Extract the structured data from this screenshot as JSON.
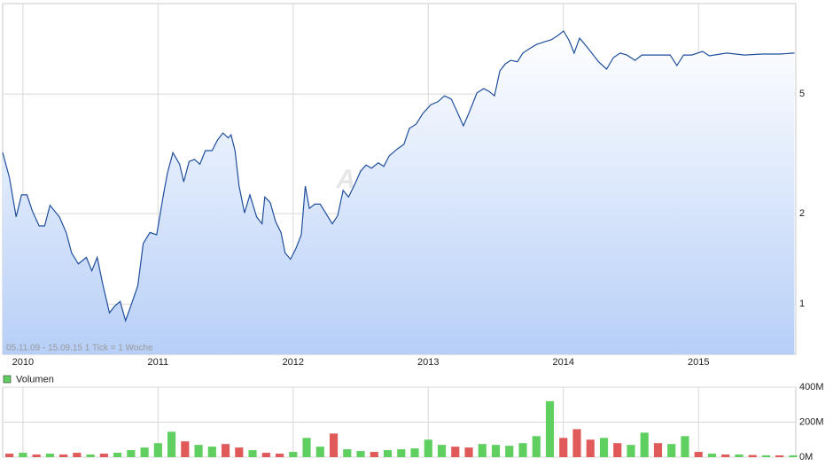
{
  "chart_data": [
    {
      "type": "line",
      "log_scale": true,
      "grid": true,
      "color": "#1f4e9c",
      "note": "05.11.09 - 15.09.15   1 Tick = 1 Woche",
      "watermark": "ARIVA.DE",
      "xlim": [
        2009.85,
        2015.72
      ],
      "xticks": [
        2010,
        2011,
        2012,
        2013,
        2014,
        2015
      ],
      "ylim": [
        0.68,
        10
      ],
      "yticks": [
        1,
        2,
        5
      ],
      "x": [
        2009.85,
        2009.9,
        2009.95,
        2009.99,
        2010.03,
        2010.07,
        2010.12,
        2010.16,
        2010.2,
        2010.27,
        2010.32,
        2010.36,
        2010.41,
        2010.47,
        2010.51,
        2010.55,
        2010.59,
        2010.64,
        2010.68,
        2010.72,
        2010.76,
        2010.81,
        2010.85,
        2010.89,
        2010.94,
        2010.99,
        2011.04,
        2011.07,
        2011.11,
        2011.16,
        2011.19,
        2011.23,
        2011.27,
        2011.31,
        2011.35,
        2011.4,
        2011.44,
        2011.48,
        2011.52,
        2011.54,
        2011.57,
        2011.6,
        2011.64,
        2011.68,
        2011.73,
        2011.77,
        2011.79,
        2011.83,
        2011.87,
        2011.91,
        2011.94,
        2011.98,
        2012.02,
        2012.06,
        2012.09,
        2012.12,
        2012.16,
        2012.2,
        2012.24,
        2012.29,
        2012.33,
        2012.37,
        2012.41,
        2012.45,
        2012.5,
        2012.54,
        2012.58,
        2012.63,
        2012.67,
        2012.71,
        2012.77,
        2012.82,
        2012.86,
        2012.91,
        2012.96,
        2013.02,
        2013.07,
        2013.12,
        2013.17,
        2013.21,
        2013.26,
        2013.3,
        2013.36,
        2013.41,
        2013.45,
        2013.49,
        2013.53,
        2013.57,
        2013.61,
        2013.66,
        2013.7,
        2013.75,
        2013.8,
        2013.86,
        2013.91,
        2013.96,
        2014.0,
        2014.04,
        2014.08,
        2014.12,
        2014.16,
        2014.21,
        2014.26,
        2014.32,
        2014.37,
        2014.42,
        2014.47,
        2014.53,
        2014.58,
        2014.68,
        2014.79,
        2014.84,
        2014.89,
        2014.95,
        2015.03,
        2015.08,
        2015.21,
        2015.34,
        2015.47,
        2015.6,
        2015.71
      ],
      "values": [
        3.19,
        2.64,
        1.95,
        2.31,
        2.31,
        2.04,
        1.82,
        1.82,
        2.13,
        1.95,
        1.73,
        1.48,
        1.36,
        1.43,
        1.29,
        1.43,
        1.17,
        0.935,
        0.986,
        1.02,
        0.88,
        1.02,
        1.15,
        1.59,
        1.73,
        1.7,
        2.31,
        2.73,
        3.19,
        2.92,
        2.55,
        2.98,
        3.03,
        2.92,
        3.24,
        3.24,
        3.51,
        3.71,
        3.57,
        3.66,
        3.24,
        2.47,
        2.01,
        2.31,
        1.95,
        1.85,
        2.27,
        2.18,
        1.88,
        1.73,
        1.48,
        1.41,
        1.53,
        1.7,
        2.47,
        2.08,
        2.15,
        2.15,
        2.01,
        1.85,
        1.97,
        2.39,
        2.27,
        2.47,
        2.77,
        2.9,
        2.83,
        2.95,
        2.87,
        3.11,
        3.28,
        3.4,
        3.84,
        3.97,
        4.31,
        4.61,
        4.71,
        4.93,
        4.81,
        4.4,
        3.92,
        4.31,
        5.04,
        5.21,
        5.1,
        4.93,
        5.97,
        6.3,
        6.47,
        6.4,
        6.84,
        7.08,
        7.31,
        7.46,
        7.57,
        7.83,
        8.1,
        7.57,
        6.84,
        7.67,
        7.31,
        6.84,
        6.4,
        6.05,
        6.61,
        6.84,
        6.74,
        6.47,
        6.74,
        6.74,
        6.74,
        6.22,
        6.74,
        6.74,
        6.93,
        6.7,
        6.84,
        6.74,
        6.79,
        6.79,
        6.84
      ]
    },
    {
      "type": "bar",
      "grid": true,
      "xlim": [
        2009.85,
        2015.72
      ],
      "xticks": [
        2010,
        2011,
        2012,
        2013,
        2014,
        2015
      ],
      "ylim": [
        0,
        400
      ],
      "yticks": [
        {
          "value": 0,
          "label": "0M"
        },
        {
          "value": 200,
          "label": "200M"
        },
        {
          "value": 400,
          "label": "400M"
        }
      ],
      "series": [
        {
          "name": "Volumen",
          "color": "#5fcf5f",
          "x": [
            2009.9,
            2010.0,
            2010.1,
            2010.2,
            2010.3,
            2010.4,
            2010.5,
            2010.6,
            2010.7,
            2010.8,
            2010.9,
            2011.0,
            2011.1,
            2011.2,
            2011.3,
            2011.4,
            2011.5,
            2011.6,
            2011.7,
            2011.8,
            2011.9,
            2012.0,
            2012.1,
            2012.2,
            2012.3,
            2012.4,
            2012.5,
            2012.6,
            2012.7,
            2012.8,
            2012.9,
            2013.0,
            2013.1,
            2013.2,
            2013.3,
            2013.4,
            2013.5,
            2013.6,
            2013.7,
            2013.8,
            2013.9,
            2014.0,
            2014.1,
            2014.2,
            2014.3,
            2014.4,
            2014.5,
            2014.6,
            2014.7,
            2014.8,
            2014.9,
            2015.0,
            2015.1,
            2015.2,
            2015.3,
            2015.4,
            2015.5,
            2015.6,
            2015.7
          ],
          "values": [
            20,
            25,
            15,
            20,
            15,
            25,
            15,
            20,
            25,
            40,
            55,
            80,
            145,
            90,
            70,
            60,
            75,
            55,
            40,
            25,
            20,
            30,
            110,
            60,
            135,
            45,
            35,
            30,
            40,
            45,
            50,
            100,
            70,
            60,
            55,
            75,
            70,
            65,
            80,
            120,
            320,
            110,
            160,
            100,
            110,
            80,
            70,
            140,
            80,
            75,
            120,
            30,
            20,
            15,
            15,
            12,
            10,
            10,
            10
          ],
          "bar_colors": [
            "#e05a5a",
            "#5fcf5f",
            "#e05a5a",
            "#5fcf5f",
            "#e05a5a",
            "#e05a5a",
            "#5fcf5f",
            "#e05a5a",
            "#5fcf5f",
            "#5fcf5f",
            "#5fcf5f",
            "#5fcf5f",
            "#5fcf5f",
            "#e05a5a",
            "#5fcf5f",
            "#5fcf5f",
            "#e05a5a",
            "#e05a5a",
            "#5fcf5f",
            "#e05a5a",
            "#e05a5a",
            "#5fcf5f",
            "#5fcf5f",
            "#5fcf5f",
            "#e05a5a",
            "#5fcf5f",
            "#5fcf5f",
            "#e05a5a",
            "#5fcf5f",
            "#5fcf5f",
            "#5fcf5f",
            "#5fcf5f",
            "#5fcf5f",
            "#e05a5a",
            "#e05a5a",
            "#5fcf5f",
            "#5fcf5f",
            "#5fcf5f",
            "#5fcf5f",
            "#5fcf5f",
            "#5fcf5f",
            "#e05a5a",
            "#e05a5a",
            "#e05a5a",
            "#5fcf5f",
            "#e05a5a",
            "#5fcf5f",
            "#5fcf5f",
            "#e05a5a",
            "#5fcf5f",
            "#5fcf5f",
            "#e05a5a",
            "#5fcf5f",
            "#e05a5a",
            "#5fcf5f",
            "#e05a5a",
            "#5fcf5f",
            "#e05a5a",
            "#5fcf5f"
          ]
        }
      ]
    }
  ]
}
